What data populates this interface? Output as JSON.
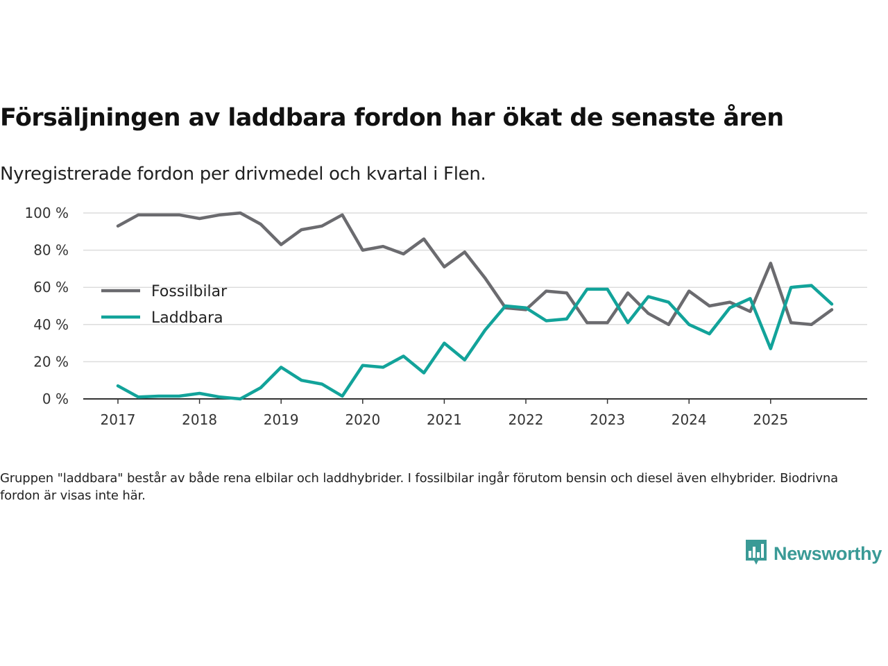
{
  "header": {
    "title": "Försäljningen av laddbara fordon har ökat de senaste åren",
    "subtitle": "Nyregistrerade fordon per drivmedel och kvartal i Flen."
  },
  "footnote": "Gruppen \"laddbara\" består av både rena elbilar och laddhybrider. I fossilbilar ingår förutom bensin och diesel även elhybrider. Biodrivna fordon är visas inte här.",
  "brand": {
    "name": "Newsworthy",
    "icon": "bar-chart-speech-bubble-icon",
    "color": "#3a9a96"
  },
  "chart_data": {
    "type": "line",
    "title": "Försäljningen av laddbara fordon har ökat de senaste åren",
    "subtitle": "Nyregistrerade fordon per drivmedel och kvartal i Flen.",
    "xlabel": "",
    "ylabel": "",
    "x": [
      "2017-Q1",
      "2017-Q2",
      "2017-Q3",
      "2017-Q4",
      "2018-Q1",
      "2018-Q2",
      "2018-Q3",
      "2018-Q4",
      "2019-Q1",
      "2019-Q2",
      "2019-Q3",
      "2019-Q4",
      "2020-Q1",
      "2020-Q2",
      "2020-Q3",
      "2020-Q4",
      "2021-Q1",
      "2021-Q2",
      "2021-Q3",
      "2021-Q4",
      "2022-Q1",
      "2022-Q2",
      "2022-Q3",
      "2022-Q4",
      "2023-Q1",
      "2023-Q2",
      "2023-Q3",
      "2023-Q4",
      "2024-Q1",
      "2024-Q2",
      "2024-Q3",
      "2024-Q4",
      "2025-Q1",
      "2025-Q2",
      "2025-Q3",
      "2025-Q4"
    ],
    "xticks": [
      "2017",
      "2018",
      "2019",
      "2020",
      "2021",
      "2022",
      "2023",
      "2024",
      "2025"
    ],
    "yticks": [
      0,
      20,
      40,
      60,
      80,
      100
    ],
    "ytick_labels": [
      "0 %",
      "20 %",
      "40 %",
      "60 %",
      "80 %",
      "100 %"
    ],
    "ylim": [
      0,
      100
    ],
    "grid": true,
    "legend_position": "left-middle",
    "series": [
      {
        "name": "Fossilbilar",
        "color": "#6b6b6f",
        "values": [
          93,
          99,
          99,
          99,
          97,
          99,
          100,
          94,
          83,
          91,
          93,
          99,
          80,
          82,
          78,
          86,
          71,
          79,
          65,
          49,
          48,
          58,
          57,
          41,
          41,
          57,
          46,
          40,
          58,
          50,
          52,
          47,
          73,
          41,
          40,
          48
        ]
      },
      {
        "name": "Laddbara",
        "color": "#12a39a",
        "values": [
          7,
          1,
          1.5,
          1.5,
          3,
          1,
          0,
          6,
          17,
          10,
          8,
          1.5,
          18,
          17,
          23,
          14,
          30,
          21,
          37,
          50,
          49,
          42,
          43,
          59,
          59,
          41,
          55,
          52,
          40,
          35,
          49,
          54,
          27,
          60,
          61,
          51
        ]
      }
    ]
  }
}
